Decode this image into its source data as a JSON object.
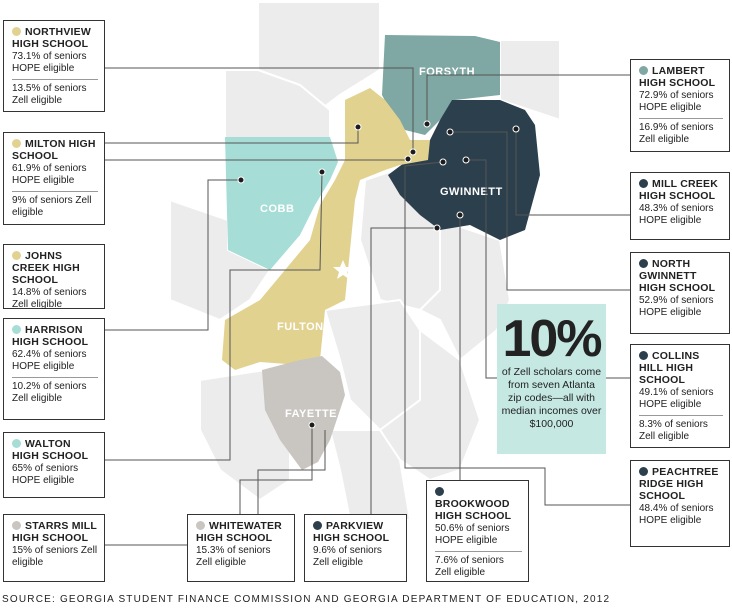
{
  "colors": {
    "forsyth": "#7fa7a3",
    "gwinnett": "#2c3f4d",
    "cobb": "#a6ddd6",
    "fulton": "#e2d290",
    "fayette": "#c9c5c0",
    "background_counties": "#ececec",
    "callout_bg": "#c5e8e2",
    "line": "#555555"
  },
  "counties": {
    "forsyth": "FORSYTH",
    "gwinnett": "GWINNETT",
    "cobb": "COBB",
    "fulton": "FULTON",
    "fayette": "FAYETTE"
  },
  "schools": [
    {
      "id": "northview",
      "name": "NORTHVIEW HIGH SCHOOL",
      "dot": "#e2d290",
      "hope": "73.1% of seniors HOPE eligible",
      "zell": "13.5% of seniors Zell eligible"
    },
    {
      "id": "milton",
      "name": "MILTON HIGH SCHOOL",
      "dot": "#e2d290",
      "hope": "61.9% of seniors HOPE eligible",
      "zell": "9% of seniors Zell eligible"
    },
    {
      "id": "johns-creek",
      "name": "JOHNS CREEK HIGH SCHOOL",
      "dot": "#e2d290",
      "hope": "14.8% of seniors Zell eligible",
      "zell": ""
    },
    {
      "id": "harrison",
      "name": "HARRISON HIGH SCHOOL",
      "dot": "#a6ddd6",
      "hope": "62.4% of seniors HOPE eligible",
      "zell": "10.2% of seniors Zell eligible"
    },
    {
      "id": "walton",
      "name": "WALTON HIGH SCHOOL",
      "dot": "#a6ddd6",
      "hope": "65% of seniors HOPE eligible",
      "zell": ""
    },
    {
      "id": "starrs-mill",
      "name": "STARRS MILL HIGH SCHOOL",
      "dot": "#c9c5c0",
      "hope": "15% of seniors Zell eligible",
      "zell": ""
    },
    {
      "id": "whitewater",
      "name": "WHITEWATER HIGH SCHOOL",
      "dot": "#c9c5c0",
      "hope": "15.3% of seniors Zell eligible",
      "zell": ""
    },
    {
      "id": "parkview",
      "name": "PARKVIEW HIGH SCHOOL",
      "dot": "#2c3f4d",
      "hope": "9.6% of seniors Zell eligible",
      "zell": ""
    },
    {
      "id": "brookwood",
      "name": "BROOKWOOD HIGH SCHOOL",
      "dot": "#2c3f4d",
      "hope": "50.6% of seniors HOPE eligible",
      "zell": "7.6% of seniors Zell eligible"
    },
    {
      "id": "lambert",
      "name": "LAMBERT HIGH SCHOOL",
      "dot": "#7fa7a3",
      "hope": "72.9% of seniors HOPE eligible",
      "zell": "16.9% of seniors Zell eligible"
    },
    {
      "id": "mill-creek",
      "name": "MILL CREEK HIGH SCHOOL",
      "dot": "#2c3f4d",
      "hope": "48.3% of seniors HOPE eligible",
      "zell": ""
    },
    {
      "id": "north-gwinnett",
      "name": "NORTH GWINNETT HIGH SCHOOL",
      "dot": "#2c3f4d",
      "hope": "52.9% of seniors HOPE eligible",
      "zell": ""
    },
    {
      "id": "collins-hill",
      "name": "COLLINS HILL HIGH SCHOOL",
      "dot": "#2c3f4d",
      "hope": "49.1% of seniors HOPE eligible",
      "zell": "8.3% of seniors Zell eligible"
    },
    {
      "id": "peachtree-ridge",
      "name": "PEACHTREE RIDGE HIGH SCHOOL",
      "dot": "#2c3f4d",
      "hope": "48.4% of seniors HOPE eligible",
      "zell": ""
    }
  ],
  "callout": {
    "big": "10%",
    "text": "of Zell scholars come from seven Atlanta zip codes—all with median incomes over $100,000"
  },
  "source": "SOURCE: GEORGIA STUDENT FINANCE COMMISSION AND GEORGIA DEPARTMENT OF EDUCATION, 2012"
}
